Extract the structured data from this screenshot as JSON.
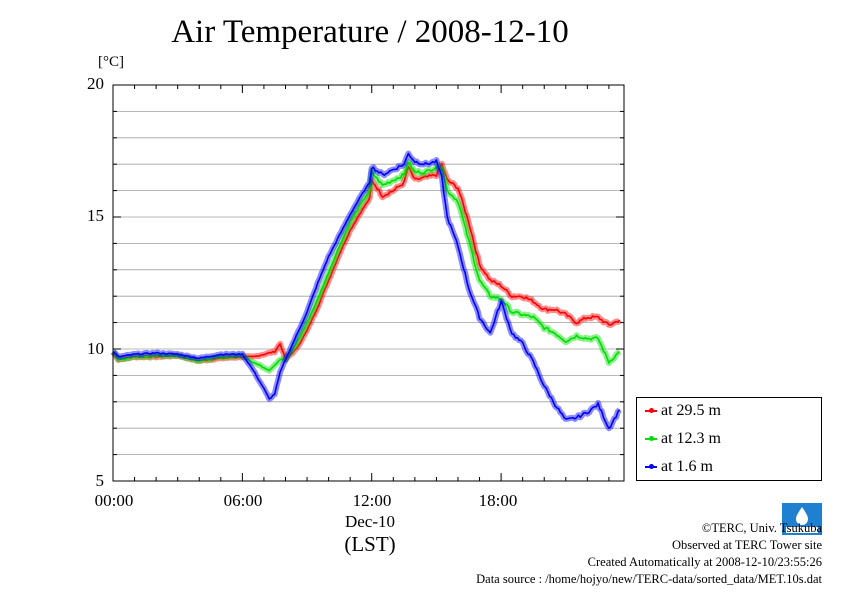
{
  "title": "Air Temperature / 2008-12-10",
  "y_unit": "[°C]",
  "x_date": "Dec-10",
  "x_tz": "(LST)",
  "credits": {
    "copyright": "©TERC, Univ. Tsukuba",
    "site": "Observed at TERC Tower site",
    "created": "Created Automatically at 2008-12-10/23:55:26",
    "source": "Data source : /home/hojyo/new/TERC-data/sorted_data/MET.10s.dat"
  },
  "logo_text": "TERC",
  "chart_data": {
    "type": "line",
    "title": "Air Temperature / 2008-12-10",
    "xlabel": "Dec-10 (LST)",
    "ylabel": "[°C]",
    "xlim": [
      0,
      23.7
    ],
    "ylim": [
      5,
      20
    ],
    "x_ticks": [
      0,
      6,
      12,
      18
    ],
    "x_tick_labels": [
      "00:00",
      "06:00",
      "12:00",
      "18:00"
    ],
    "y_ticks": [
      5,
      10,
      15,
      20
    ],
    "y_tick_labels": [
      "5",
      "10",
      "15",
      "20"
    ],
    "grid": "horizontal, every 1 °C",
    "legend_position": "right, below plot top",
    "series": [
      {
        "name": "at 29.5 m",
        "color": "#ff0000",
        "x": [
          0,
          0.25,
          1,
          2,
          3,
          4,
          5,
          6,
          6.5,
          7,
          7.25,
          7.5,
          7.75,
          8,
          8.5,
          9,
          9.5,
          10,
          10.5,
          11,
          11.5,
          11.9,
          12,
          12.5,
          13,
          13.5,
          13.7,
          14,
          14.5,
          15,
          15.25,
          15.5,
          16,
          16.5,
          17,
          17.5,
          18,
          18.5,
          19,
          19.5,
          20,
          20.5,
          21,
          21.5,
          22,
          22.5,
          23,
          23.5
        ],
        "y": [
          9.9,
          9.6,
          9.7,
          9.7,
          9.75,
          9.55,
          9.65,
          9.7,
          9.7,
          9.8,
          9.85,
          9.9,
          10.2,
          9.6,
          10.0,
          10.7,
          11.6,
          12.6,
          13.6,
          14.5,
          15.2,
          15.7,
          16.4,
          15.8,
          16.0,
          16.3,
          16.9,
          16.4,
          16.5,
          16.6,
          17.0,
          16.4,
          16.1,
          14.8,
          13.2,
          12.6,
          12.4,
          12.0,
          12.0,
          11.8,
          11.5,
          11.5,
          11.3,
          11.0,
          11.2,
          11.2,
          10.9,
          11.1
        ]
      },
      {
        "name": "at 12.3 m",
        "color": "#00dd00",
        "x": [
          0,
          0.25,
          1,
          2,
          3,
          4,
          5,
          6,
          6.5,
          7,
          7.25,
          7.5,
          7.75,
          8,
          8.5,
          9,
          9.5,
          10,
          10.5,
          11,
          11.5,
          11.9,
          12,
          12.5,
          13,
          13.5,
          13.7,
          14,
          14.5,
          15,
          15.25,
          15.5,
          16,
          16.5,
          17,
          17.5,
          18,
          18.5,
          19,
          19.5,
          20,
          20.5,
          21,
          21.5,
          22,
          22.5,
          23,
          23.5
        ],
        "y": [
          9.9,
          9.6,
          9.7,
          9.75,
          9.75,
          9.55,
          9.7,
          9.75,
          9.5,
          9.3,
          9.2,
          9.4,
          9.6,
          9.6,
          10.2,
          11.0,
          11.9,
          12.9,
          13.9,
          14.8,
          15.5,
          16.0,
          16.7,
          16.2,
          16.4,
          16.6,
          17.1,
          16.7,
          16.7,
          16.9,
          16.9,
          16.0,
          15.6,
          14.1,
          12.6,
          12.0,
          11.9,
          11.4,
          11.3,
          11.2,
          10.8,
          10.6,
          10.3,
          10.5,
          10.4,
          10.4,
          9.5,
          9.9
        ]
      },
      {
        "name": "at 1.6 m",
        "color": "#0000ff",
        "x": [
          0,
          0.25,
          1,
          2,
          3,
          4,
          5,
          6,
          6.5,
          7,
          7.25,
          7.5,
          7.75,
          8,
          8.5,
          9,
          9.5,
          10,
          10.5,
          11,
          11.5,
          11.9,
          12,
          12.5,
          13,
          13.5,
          13.7,
          14,
          14.5,
          15,
          15.25,
          15.5,
          16,
          16.5,
          17,
          17.5,
          18,
          18.5,
          19,
          19.5,
          20,
          20.5,
          21,
          21.5,
          22,
          22.5,
          23,
          23.5
        ],
        "y": [
          9.9,
          9.7,
          9.8,
          9.85,
          9.8,
          9.65,
          9.8,
          9.8,
          9.2,
          8.5,
          8.1,
          8.3,
          9.1,
          9.6,
          10.5,
          11.4,
          12.5,
          13.5,
          14.3,
          15.1,
          15.8,
          16.3,
          16.9,
          16.6,
          16.8,
          17.0,
          17.4,
          17.1,
          17.0,
          17.1,
          16.5,
          15.0,
          13.9,
          12.3,
          11.2,
          10.6,
          11.8,
          10.6,
          10.2,
          9.5,
          8.6,
          7.9,
          7.3,
          7.4,
          7.6,
          7.9,
          7.0,
          7.7
        ]
      }
    ]
  }
}
